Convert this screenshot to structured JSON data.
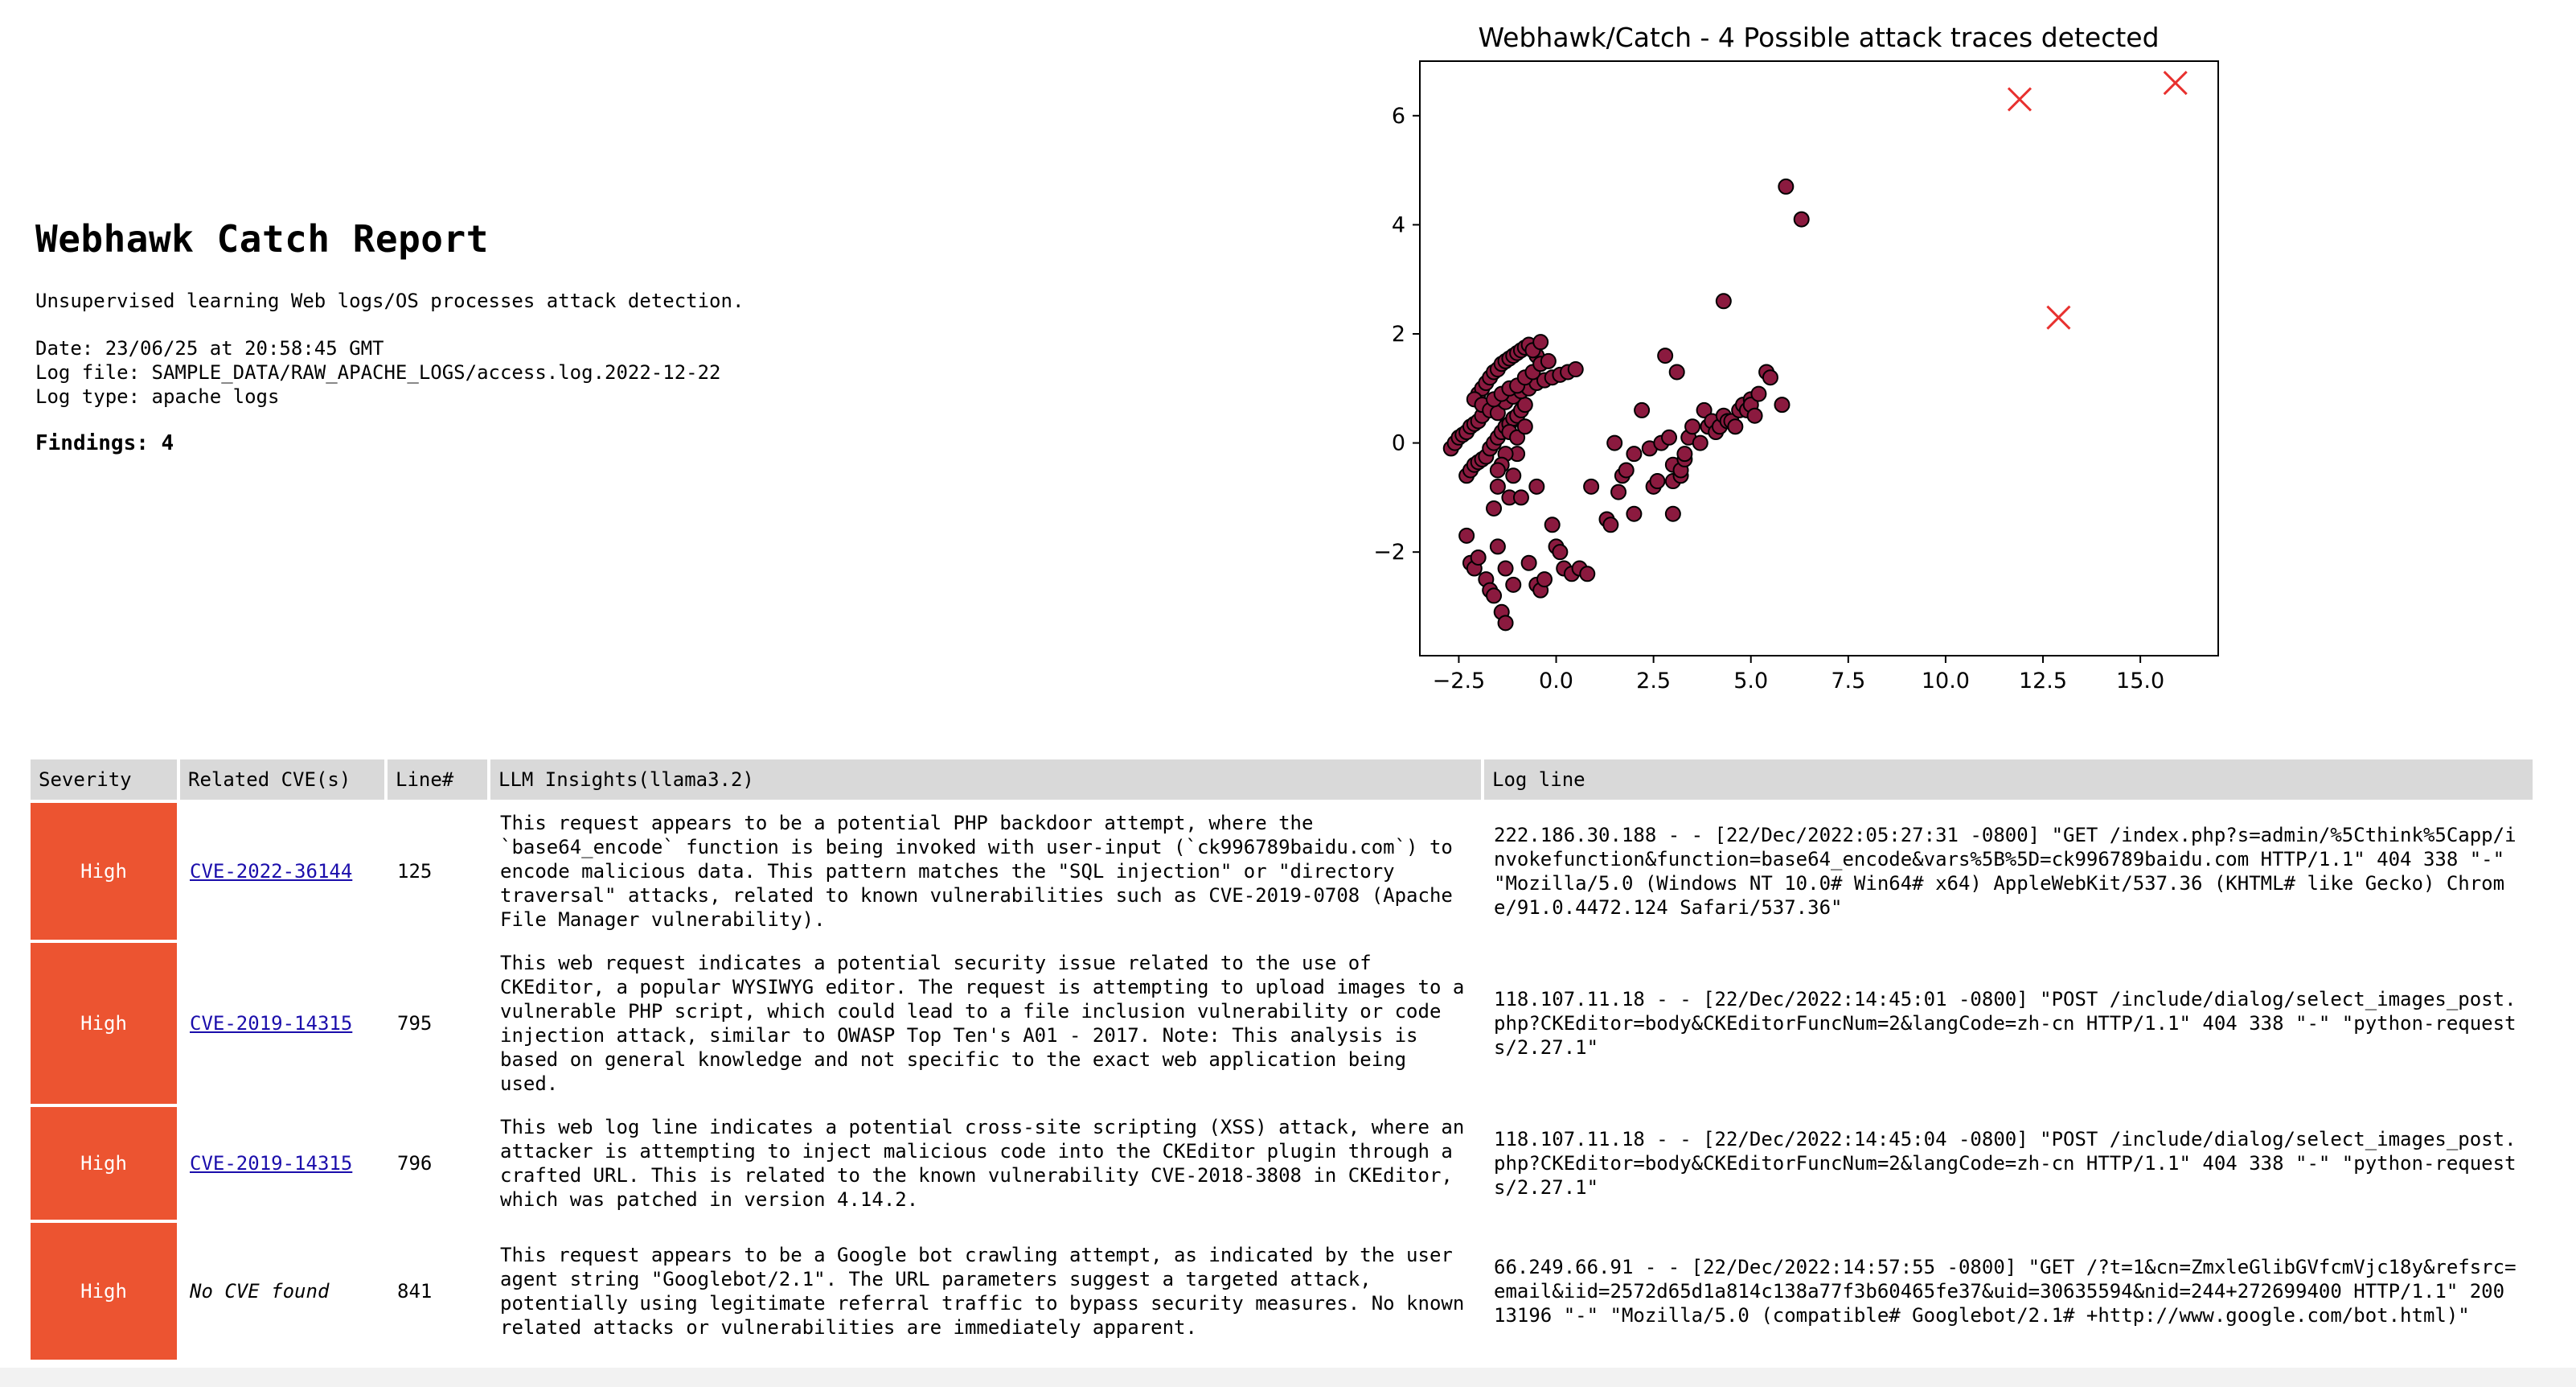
{
  "report": {
    "title": "Webhawk Catch Report",
    "subtitle": "Unsupervised learning Web logs/OS processes attack detection.",
    "date_line": "Date: 23/06/25 at 20:58:45 GMT",
    "log_file_line": "Log file: SAMPLE_DATA/RAW_APACHE_LOGS/access.log.2022-12-22",
    "log_type_line": "Log type: apache logs",
    "findings_label": "Findings:",
    "findings_count": "4"
  },
  "chart_data": {
    "type": "scatter",
    "title": "Webhawk/Catch - 4 Possible attack traces detected",
    "xlabel": "",
    "ylabel": "",
    "xlim": [
      -3.5,
      17.0
    ],
    "ylim": [
      -3.9,
      7.0
    ],
    "xticks": [
      -2.5,
      0.0,
      2.5,
      5.0,
      7.5,
      10.0,
      12.5,
      15.0
    ],
    "xtick_labels": [
      "−2.5",
      "0.0",
      "2.5",
      "5.0",
      "7.5",
      "10.0",
      "12.5",
      "15.0"
    ],
    "yticks": [
      -2,
      0,
      2,
      4,
      6
    ],
    "ytick_labels": [
      "−2",
      "0",
      "2",
      "4",
      "6"
    ],
    "grid": false,
    "colors": {
      "normal": "#8b1a3f",
      "outlier": "#e8312f"
    },
    "series": [
      {
        "role": "normal",
        "points": [
          [
            -2.7,
            -0.1
          ],
          [
            -2.6,
            0.0
          ],
          [
            -2.5,
            0.1
          ],
          [
            -2.4,
            0.15
          ],
          [
            -2.3,
            0.2
          ],
          [
            -2.2,
            0.3
          ],
          [
            -2.1,
            0.35
          ],
          [
            -2.0,
            0.4
          ],
          [
            -1.9,
            0.5
          ],
          [
            -2.0,
            0.9
          ],
          [
            -1.9,
            1.0
          ],
          [
            -1.8,
            1.1
          ],
          [
            -1.7,
            1.2
          ],
          [
            -1.6,
            1.3
          ],
          [
            -1.5,
            1.35
          ],
          [
            -1.4,
            1.45
          ],
          [
            -1.3,
            1.5
          ],
          [
            -1.2,
            1.55
          ],
          [
            -1.1,
            1.6
          ],
          [
            -1.0,
            1.65
          ],
          [
            -0.9,
            1.7
          ],
          [
            -0.8,
            1.75
          ],
          [
            -0.7,
            1.8
          ],
          [
            -0.5,
            1.6
          ],
          [
            -0.6,
            1.7
          ],
          [
            -0.4,
            1.85
          ],
          [
            -2.3,
            -0.6
          ],
          [
            -2.2,
            -0.5
          ],
          [
            -2.1,
            -0.4
          ],
          [
            -2.0,
            -0.35
          ],
          [
            -1.9,
            -0.3
          ],
          [
            -1.8,
            -0.25
          ],
          [
            -1.7,
            -0.1
          ],
          [
            -1.6,
            0.0
          ],
          [
            -1.5,
            0.1
          ],
          [
            -1.4,
            0.2
          ],
          [
            -1.3,
            0.3
          ],
          [
            -1.2,
            0.35
          ],
          [
            -1.1,
            0.45
          ],
          [
            -1.0,
            0.5
          ],
          [
            -0.9,
            0.6
          ],
          [
            -0.8,
            0.7
          ],
          [
            -2.1,
            0.8
          ],
          [
            -1.9,
            0.7
          ],
          [
            -1.7,
            0.6
          ],
          [
            -1.5,
            0.55
          ],
          [
            -1.3,
            0.75
          ],
          [
            -1.1,
            0.85
          ],
          [
            -0.9,
            0.95
          ],
          [
            -0.7,
            1.0
          ],
          [
            -0.5,
            1.1
          ],
          [
            -0.3,
            1.15
          ],
          [
            -0.1,
            1.2
          ],
          [
            0.1,
            1.25
          ],
          [
            0.3,
            1.3
          ],
          [
            0.5,
            1.35
          ],
          [
            -1.6,
            0.8
          ],
          [
            -1.4,
            0.9
          ],
          [
            -1.2,
            1.0
          ],
          [
            -1.0,
            1.05
          ],
          [
            -0.8,
            1.2
          ],
          [
            -0.6,
            1.3
          ],
          [
            -0.4,
            1.45
          ],
          [
            -0.2,
            1.5
          ],
          [
            -1.2,
            0.2
          ],
          [
            -1.0,
            0.1
          ],
          [
            -0.8,
            0.3
          ],
          [
            -1.0,
            -0.2
          ],
          [
            -1.3,
            -0.2
          ],
          [
            -1.4,
            -0.4
          ],
          [
            -1.1,
            -0.6
          ],
          [
            -1.5,
            -0.5
          ],
          [
            -1.5,
            -0.8
          ],
          [
            -1.6,
            -1.2
          ],
          [
            -1.2,
            -1.0
          ],
          [
            -0.5,
            -0.8
          ],
          [
            -0.9,
            -1.0
          ],
          [
            -2.3,
            -1.7
          ],
          [
            -2.2,
            -2.2
          ],
          [
            -2.1,
            -2.3
          ],
          [
            -2.0,
            -2.1
          ],
          [
            -1.8,
            -2.5
          ],
          [
            -1.7,
            -2.7
          ],
          [
            -1.6,
            -2.8
          ],
          [
            -1.5,
            -1.9
          ],
          [
            -1.3,
            -2.3
          ],
          [
            -1.4,
            -3.1
          ],
          [
            -1.3,
            -3.3
          ],
          [
            -1.1,
            -2.6
          ],
          [
            -0.7,
            -2.2
          ],
          [
            -0.5,
            -2.6
          ],
          [
            -0.4,
            -2.7
          ],
          [
            -0.3,
            -2.5
          ],
          [
            -0.1,
            -1.5
          ],
          [
            0.0,
            -1.9
          ],
          [
            0.1,
            -2.0
          ],
          [
            0.2,
            -2.3
          ],
          [
            0.4,
            -2.4
          ],
          [
            0.6,
            -2.3
          ],
          [
            0.8,
            -2.4
          ],
          [
            0.9,
            -0.8
          ],
          [
            1.3,
            -1.4
          ],
          [
            1.4,
            -1.5
          ],
          [
            1.5,
            0.0
          ],
          [
            1.6,
            -0.9
          ],
          [
            1.7,
            -0.6
          ],
          [
            1.8,
            -0.5
          ],
          [
            2.0,
            -1.3
          ],
          [
            2.0,
            -0.2
          ],
          [
            2.2,
            0.6
          ],
          [
            2.4,
            -0.1
          ],
          [
            2.5,
            -0.8
          ],
          [
            2.6,
            -0.7
          ],
          [
            2.7,
            0.0
          ],
          [
            2.8,
            1.6
          ],
          [
            2.9,
            0.1
          ],
          [
            3.0,
            -0.7
          ],
          [
            3.0,
            -0.4
          ],
          [
            3.0,
            -1.3
          ],
          [
            3.1,
            1.3
          ],
          [
            3.2,
            -0.6
          ],
          [
            3.2,
            -0.5
          ],
          [
            3.3,
            -0.3
          ],
          [
            3.3,
            -0.2
          ],
          [
            3.4,
            0.1
          ],
          [
            3.5,
            0.3
          ],
          [
            3.7,
            0.0
          ],
          [
            3.8,
            0.6
          ],
          [
            3.9,
            0.3
          ],
          [
            4.0,
            0.4
          ],
          [
            4.1,
            0.2
          ],
          [
            4.2,
            0.3
          ],
          [
            4.3,
            0.5
          ],
          [
            4.4,
            0.4
          ],
          [
            4.5,
            0.4
          ],
          [
            4.6,
            0.3
          ],
          [
            4.7,
            0.6
          ],
          [
            4.8,
            0.7
          ],
          [
            4.9,
            0.6
          ],
          [
            5.0,
            0.8
          ],
          [
            5.0,
            0.7
          ],
          [
            5.2,
            0.9
          ],
          [
            5.1,
            0.5
          ],
          [
            5.4,
            1.3
          ],
          [
            5.5,
            1.2
          ],
          [
            5.8,
            0.7
          ],
          [
            4.3,
            2.6
          ],
          [
            5.9,
            4.7
          ],
          [
            6.3,
            4.1
          ]
        ]
      },
      {
        "role": "outlier",
        "points": [
          [
            11.9,
            6.3
          ],
          [
            12.9,
            2.3
          ],
          [
            15.9,
            6.6
          ]
        ]
      }
    ]
  },
  "table": {
    "headers": [
      "Severity",
      "Related CVE(s)",
      "Line#",
      "LLM Insights(llama3.2)",
      "Log line"
    ],
    "rows": [
      {
        "severity": "High",
        "cve": "CVE-2022-36144",
        "line": "125",
        "insight": "This request appears to be a potential PHP backdoor attempt, where the `base64_encode` function is being invoked with user-input (`ck996789baidu.com`) to encode malicious data. This pattern matches the \"SQL injection\" or \"directory traversal\" attacks, related to known vulnerabilities such as CVE-2019-0708 (Apache File Manager vulnerability).",
        "log": "222.186.30.188 - - [22/Dec/2022:05:27:31 -0800] \"GET /index.php?s=admin/%5Cthink%5Capp/invokefunction&function=base64_encode&vars%5B%5D=ck996789baidu.com HTTP/1.1\" 404 338 \"-\" \"Mozilla/5.0 (Windows NT 10.0# Win64# x64) AppleWebKit/537.36 (KHTML# like Gecko) Chrome/91.0.4472.124 Safari/537.36\""
      },
      {
        "severity": "High",
        "cve": "CVE-2019-14315",
        "line": "795",
        "insight": "This web request indicates a potential security issue related to the use of CKEditor, a popular WYSIWYG editor. The request is attempting to upload images to a vulnerable PHP script, which could lead to a file inclusion vulnerability or code injection attack, similar to OWASP Top Ten's A01 - 2017. Note: This analysis is based on general knowledge and not specific to the exact web application being used.",
        "log": "118.107.11.18 - - [22/Dec/2022:14:45:01 -0800] \"POST /include/dialog/select_images_post.php?CKEditor=body&CKEditorFuncNum=2&langCode=zh-cn HTTP/1.1\" 404 338 \"-\" \"python-requests/2.27.1\""
      },
      {
        "severity": "High",
        "cve": "CVE-2019-14315",
        "line": "796",
        "insight": "This web log line indicates a potential cross-site scripting (XSS) attack, where an attacker is attempting to inject malicious code into the CKEditor plugin through a crafted URL. This is related to the known vulnerability CVE-2018-3808 in CKEditor, which was patched in version 4.14.2.",
        "log": "118.107.11.18 - - [22/Dec/2022:14:45:04 -0800] \"POST /include/dialog/select_images_post.php?CKEditor=body&CKEditorFuncNum=2&langCode=zh-cn HTTP/1.1\" 404 338 \"-\" \"python-requests/2.27.1\""
      },
      {
        "severity": "High",
        "cve": "No CVE found",
        "line": "841",
        "insight": "This request appears to be a Google bot crawling attempt, as indicated by the user agent string \"Googlebot/2.1\". The URL parameters suggest a targeted attack, potentially using legitimate referral traffic to bypass security measures. No known related attacks or vulnerabilities are immediately apparent.",
        "log": "66.249.66.91 - - [22/Dec/2022:14:57:55 -0800] \"GET /?t=1&cn=ZmxleGlibGVfcmVjc18y&refsrc=email&iid=2572d65d1a814c138a77f3b60465fe37&uid=30635594&nid=244+272699400 HTTP/1.1\" 200 13196 \"-\" \"Mozilla/5.0 (compatible# Googlebot/2.1# +http://www.google.com/bot.html)\""
      }
    ]
  }
}
